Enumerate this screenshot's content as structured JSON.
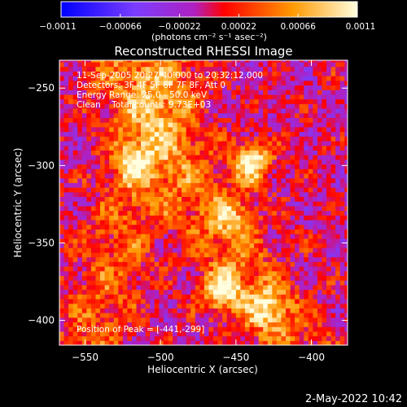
{
  "chart_data": {
    "type": "heatmap",
    "title": "Reconstructed RHESSI Image",
    "xlabel": "Heliocentric X (arcsec)",
    "ylabel": "Heliocentric Y (arcsec)",
    "xlim": [
      -567,
      -376
    ],
    "ylim": [
      -416,
      -232
    ],
    "xticks": [
      -550,
      -500,
      -450,
      -400
    ],
    "yticks": [
      -250,
      -300,
      -350,
      -400
    ],
    "xtick_labels": [
      "−550",
      "−500",
      "−450",
      "−400"
    ],
    "ytick_labels": [
      "−250",
      "−300",
      "−350",
      "−400"
    ],
    "colorbar": {
      "min": -0.0011,
      "max": 0.0011,
      "ticks": [
        -0.0011,
        -0.00066,
        -0.00022,
        0.00022,
        0.00066,
        0.0011
      ],
      "tick_labels": [
        "−0.0011",
        "−0.00066",
        "−0.00022",
        "0.00022",
        "0.00066",
        "0.0011"
      ],
      "units_label": "(photons cm⁻² s⁻¹ asec⁻²)"
    },
    "annotations": [
      "11-Sep-2005 20:27:40.000 to 20:32:12.000",
      "Detectors: 3F 4F 5F 6F 7F 8F, Att 0",
      "Energy Range: 25.0 - 50.0 keV",
      "Clean    Total counts: 9.73E+03"
    ],
    "peak_label": "Position of Peak = [-441,-299]",
    "peak": [
      -441,
      -299
    ],
    "sources": [
      {
        "x": -441,
        "y": -299,
        "value": 0.0011
      },
      {
        "x": -461,
        "y": -383,
        "value": 0.00095
      },
      {
        "x": -430,
        "y": -393,
        "value": 0.0007
      },
      {
        "x": -520,
        "y": -300,
        "value": 0.0006
      },
      {
        "x": -455,
        "y": -335,
        "value": 0.00055
      }
    ],
    "grid": false
  },
  "footer": {
    "timestamp": "2-May-2022 10:42"
  }
}
